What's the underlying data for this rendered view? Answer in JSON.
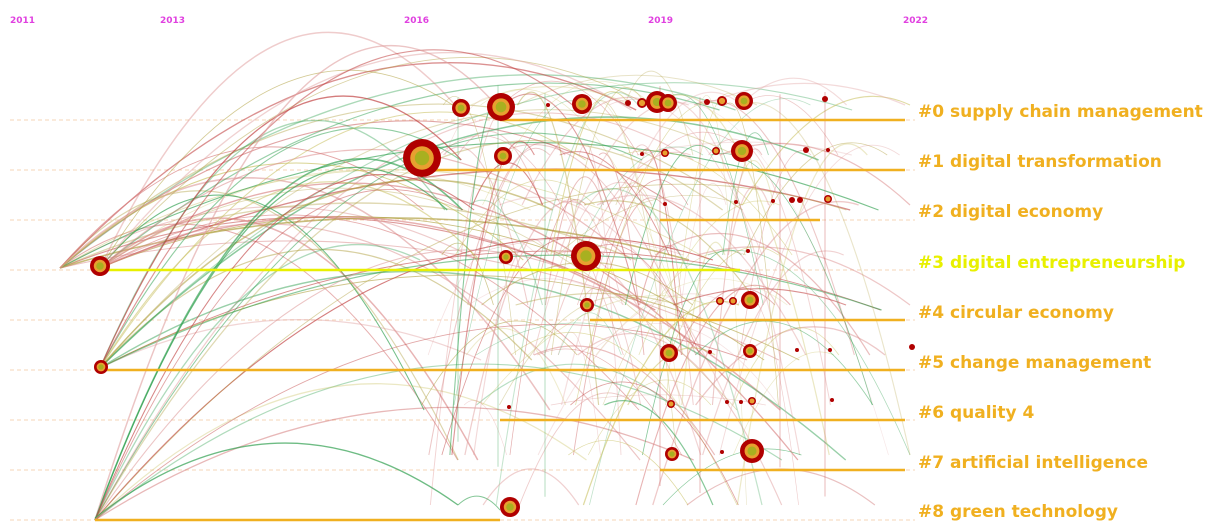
{
  "years": [
    "2011",
    "2013",
    "2016",
    "2019",
    "2022"
  ],
  "clusters": [
    {
      "label": "#0 supply chain management",
      "highlight": false
    },
    {
      "label": "#1 digital transformation",
      "highlight": false
    },
    {
      "label": "#2 digital economy",
      "highlight": false
    },
    {
      "label": "#3 digital entrepreneurship",
      "highlight": true
    },
    {
      "label": "#4 circular economy",
      "highlight": false
    },
    {
      "label": "#5 change management",
      "highlight": false
    },
    {
      "label": "#6 quality 4",
      "highlight": false
    },
    {
      "label": "#7 artificial intelligence",
      "highlight": false
    },
    {
      "label": "#8 green technology",
      "highlight": false
    }
  ],
  "colors": {
    "year_label": "#e040e0",
    "cluster_label": "#f0b020",
    "cluster_highlight": "#e8f000",
    "node_outer": "#b00000",
    "node_inner": "#a8b020",
    "link_green": "#30a050",
    "link_red": "#c04040",
    "link_olive": "#b0a040"
  }
}
